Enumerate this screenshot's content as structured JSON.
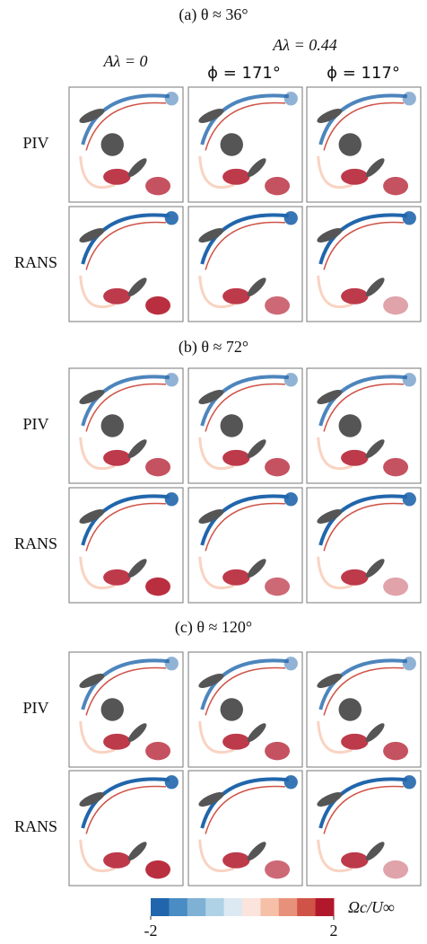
{
  "sections": [
    {
      "title": "(a) θ ≈ 36°"
    },
    {
      "title": "(b) θ ≈ 72°"
    },
    {
      "title": "(c) θ ≈ 120°"
    }
  ],
  "column_headers": {
    "group": "Aλ = 0.44",
    "columns": [
      "Aλ = 0",
      "ϕ = 171°",
      "ϕ = 117°"
    ]
  },
  "row_labels": [
    "PIV",
    "RANS"
  ],
  "colorbar": {
    "label": "Ωc/U∞",
    "lim": [
      -2,
      2
    ],
    "ticks": [
      -2,
      2
    ],
    "colors": [
      "#2166ac",
      "#4a8cc4",
      "#7fb1d5",
      "#b0d2e6",
      "#dde9f2",
      "#fbe4dc",
      "#f6c0a8",
      "#e8917a",
      "#cf5347",
      "#b2182b"
    ]
  }
}
